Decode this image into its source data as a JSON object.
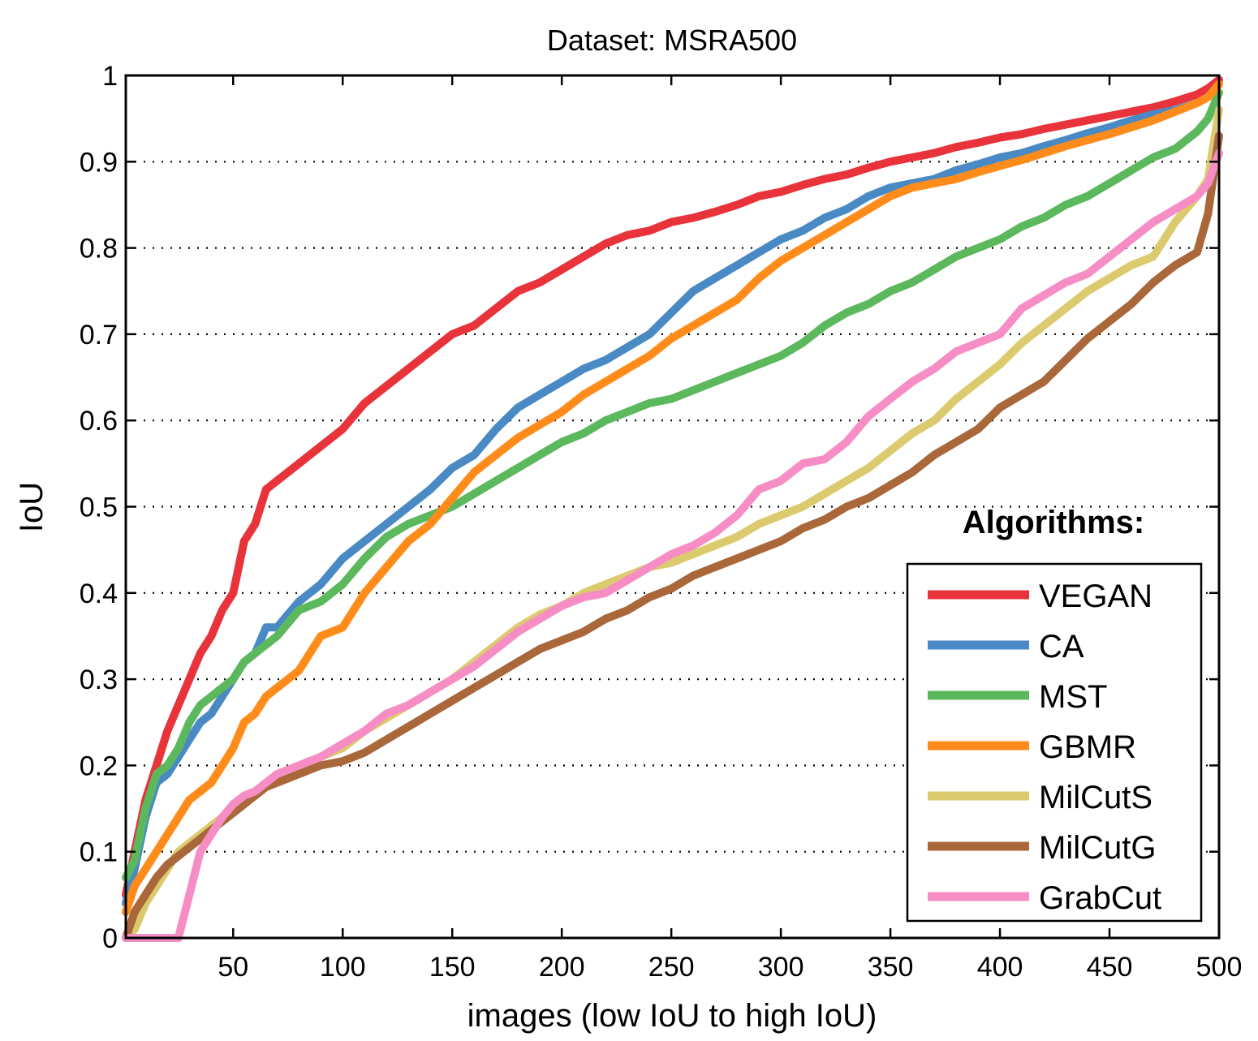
{
  "chart_data": {
    "type": "line",
    "title": "Dataset: MSRA500",
    "xlabel": "images (low IoU to high IoU)",
    "ylabel": "IoU",
    "xlim": [
      1,
      500
    ],
    "ylim": [
      0,
      1
    ],
    "xticks": [
      50,
      100,
      150,
      200,
      250,
      300,
      350,
      400,
      450,
      500
    ],
    "xtick_labels": [
      "50",
      "100",
      "150",
      "200",
      "250",
      "300",
      "350",
      "400",
      "450",
      "500"
    ],
    "yticks": [
      0,
      0.1,
      0.2,
      0.3,
      0.4,
      0.5,
      0.6,
      0.7,
      0.8,
      0.9,
      1
    ],
    "ytick_labels": [
      "0",
      "0.1",
      "0.2",
      "0.3",
      "0.4",
      "0.5",
      "0.6",
      "0.7",
      "0.8",
      "0.9",
      "1"
    ],
    "grid": "dotted horizontal",
    "legend_title": "Algorithms:",
    "legend_position": "lower-right",
    "x": [
      1,
      5,
      10,
      15,
      20,
      25,
      30,
      35,
      40,
      45,
      50,
      55,
      60,
      65,
      70,
      80,
      90,
      100,
      110,
      120,
      130,
      140,
      150,
      160,
      170,
      180,
      190,
      200,
      210,
      220,
      230,
      240,
      250,
      260,
      270,
      280,
      290,
      300,
      310,
      320,
      330,
      340,
      350,
      360,
      370,
      380,
      390,
      400,
      410,
      420,
      430,
      440,
      450,
      460,
      470,
      480,
      490,
      495,
      500
    ],
    "series": [
      {
        "name": "VEGAN",
        "color": "#e8333a",
        "values": [
          0.05,
          0.1,
          0.16,
          0.2,
          0.24,
          0.27,
          0.3,
          0.33,
          0.35,
          0.38,
          0.4,
          0.46,
          0.48,
          0.52,
          0.53,
          0.55,
          0.57,
          0.59,
          0.62,
          0.64,
          0.66,
          0.68,
          0.7,
          0.71,
          0.73,
          0.75,
          0.76,
          0.775,
          0.79,
          0.805,
          0.815,
          0.82,
          0.83,
          0.835,
          0.842,
          0.85,
          0.86,
          0.865,
          0.873,
          0.88,
          0.885,
          0.893,
          0.9,
          0.905,
          0.91,
          0.917,
          0.922,
          0.928,
          0.932,
          0.938,
          0.943,
          0.948,
          0.953,
          0.958,
          0.963,
          0.97,
          0.978,
          0.985,
          0.995
        ]
      },
      {
        "name": "CA",
        "color": "#4a8ac4",
        "values": [
          0.04,
          0.08,
          0.14,
          0.18,
          0.19,
          0.21,
          0.23,
          0.25,
          0.26,
          0.28,
          0.3,
          0.32,
          0.33,
          0.36,
          0.36,
          0.39,
          0.41,
          0.44,
          0.46,
          0.48,
          0.5,
          0.52,
          0.545,
          0.56,
          0.59,
          0.615,
          0.63,
          0.645,
          0.66,
          0.67,
          0.685,
          0.7,
          0.725,
          0.75,
          0.765,
          0.78,
          0.795,
          0.81,
          0.82,
          0.835,
          0.845,
          0.86,
          0.87,
          0.875,
          0.88,
          0.89,
          0.897,
          0.905,
          0.91,
          0.918,
          0.925,
          0.933,
          0.94,
          0.948,
          0.955,
          0.96,
          0.968,
          0.975,
          0.99
        ]
      },
      {
        "name": "MST",
        "color": "#5cb85c",
        "values": [
          0.07,
          0.09,
          0.15,
          0.19,
          0.2,
          0.22,
          0.25,
          0.27,
          0.28,
          0.29,
          0.3,
          0.32,
          0.33,
          0.34,
          0.35,
          0.38,
          0.39,
          0.41,
          0.44,
          0.465,
          0.48,
          0.49,
          0.5,
          0.515,
          0.53,
          0.545,
          0.56,
          0.575,
          0.585,
          0.6,
          0.61,
          0.62,
          0.625,
          0.635,
          0.645,
          0.655,
          0.665,
          0.675,
          0.69,
          0.71,
          0.725,
          0.735,
          0.75,
          0.76,
          0.775,
          0.79,
          0.8,
          0.81,
          0.825,
          0.835,
          0.85,
          0.86,
          0.875,
          0.89,
          0.905,
          0.915,
          0.935,
          0.95,
          0.98
        ]
      },
      {
        "name": "GBMR",
        "color": "#ff8c1a",
        "values": [
          0.03,
          0.06,
          0.08,
          0.1,
          0.12,
          0.14,
          0.16,
          0.17,
          0.18,
          0.2,
          0.22,
          0.25,
          0.26,
          0.28,
          0.29,
          0.31,
          0.35,
          0.36,
          0.4,
          0.43,
          0.46,
          0.48,
          0.51,
          0.54,
          0.56,
          0.58,
          0.595,
          0.61,
          0.63,
          0.645,
          0.66,
          0.675,
          0.695,
          0.71,
          0.725,
          0.74,
          0.765,
          0.785,
          0.8,
          0.815,
          0.83,
          0.845,
          0.86,
          0.87,
          0.875,
          0.88,
          0.888,
          0.895,
          0.902,
          0.91,
          0.918,
          0.925,
          0.932,
          0.94,
          0.948,
          0.958,
          0.968,
          0.975,
          0.99
        ]
      },
      {
        "name": "MilCutS",
        "color": "#dccb6e",
        "values": [
          0.0,
          0.01,
          0.04,
          0.06,
          0.08,
          0.1,
          0.11,
          0.12,
          0.13,
          0.14,
          0.15,
          0.16,
          0.17,
          0.18,
          0.18,
          0.2,
          0.21,
          0.22,
          0.24,
          0.255,
          0.27,
          0.285,
          0.3,
          0.32,
          0.34,
          0.36,
          0.375,
          0.385,
          0.4,
          0.41,
          0.42,
          0.43,
          0.435,
          0.445,
          0.455,
          0.465,
          0.48,
          0.49,
          0.5,
          0.515,
          0.53,
          0.545,
          0.565,
          0.585,
          0.6,
          0.625,
          0.645,
          0.665,
          0.69,
          0.71,
          0.73,
          0.75,
          0.765,
          0.78,
          0.79,
          0.83,
          0.86,
          0.88,
          0.96
        ]
      },
      {
        "name": "MilCutG",
        "color": "#a9673a",
        "values": [
          0.0,
          0.03,
          0.05,
          0.07,
          0.085,
          0.095,
          0.105,
          0.115,
          0.125,
          0.135,
          0.145,
          0.155,
          0.165,
          0.175,
          0.18,
          0.19,
          0.2,
          0.205,
          0.215,
          0.23,
          0.245,
          0.26,
          0.275,
          0.29,
          0.305,
          0.32,
          0.335,
          0.345,
          0.355,
          0.37,
          0.38,
          0.395,
          0.405,
          0.42,
          0.43,
          0.44,
          0.45,
          0.46,
          0.475,
          0.485,
          0.5,
          0.51,
          0.525,
          0.54,
          0.56,
          0.575,
          0.59,
          0.615,
          0.63,
          0.645,
          0.67,
          0.695,
          0.715,
          0.735,
          0.76,
          0.78,
          0.795,
          0.84,
          0.93
        ]
      },
      {
        "name": "GrabCut",
        "color": "#f68ec5",
        "values": [
          0.0,
          0.0,
          0.0,
          0.0,
          0.0,
          0.0,
          0.05,
          0.1,
          0.12,
          0.14,
          0.155,
          0.165,
          0.17,
          0.18,
          0.19,
          0.2,
          0.21,
          0.225,
          0.24,
          0.26,
          0.27,
          0.285,
          0.3,
          0.315,
          0.335,
          0.355,
          0.37,
          0.385,
          0.395,
          0.4,
          0.415,
          0.43,
          0.445,
          0.455,
          0.47,
          0.49,
          0.52,
          0.53,
          0.55,
          0.555,
          0.575,
          0.605,
          0.625,
          0.645,
          0.66,
          0.68,
          0.69,
          0.7,
          0.73,
          0.745,
          0.76,
          0.77,
          0.79,
          0.81,
          0.83,
          0.845,
          0.86,
          0.875,
          0.91
        ]
      }
    ]
  }
}
